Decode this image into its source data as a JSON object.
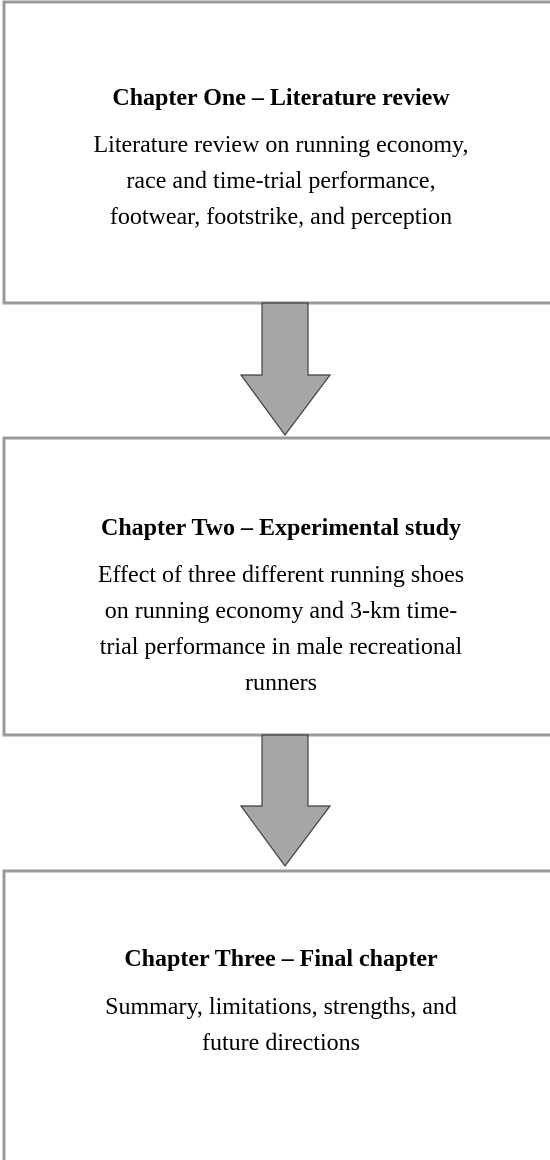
{
  "nodes": [
    {
      "title": "Chapter One – Literature review",
      "lines": [
        "Literature review on running economy,",
        "race and time-trial performance,",
        "footwear, footstrike, and perception"
      ]
    },
    {
      "title": "Chapter Two – Experimental study",
      "lines": [
        "Effect of three different running shoes",
        "on running economy and 3-km time-",
        "trial performance in male recreational",
        "runners"
      ]
    },
    {
      "title": "Chapter Three – Final chapter",
      "lines": [
        "Summary, limitations, strengths, and",
        "future directions"
      ]
    }
  ]
}
